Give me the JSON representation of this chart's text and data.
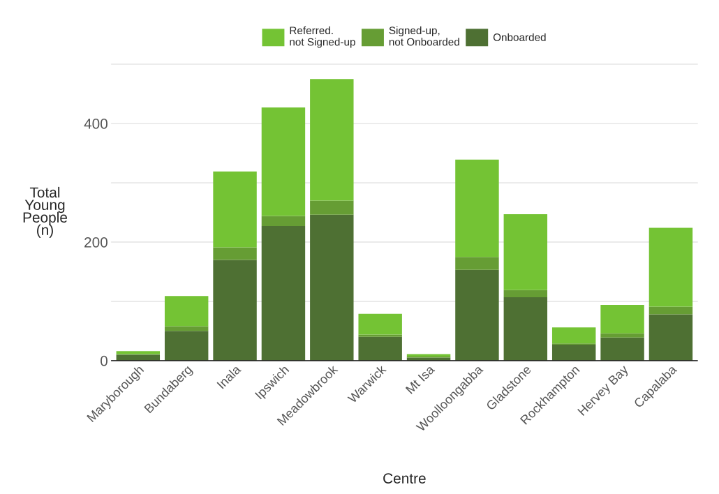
{
  "chart_data": {
    "type": "bar",
    "stacked": true,
    "xlabel": "Centre",
    "ylabel": "Total\nYoung\nPeople\n(n)",
    "categories": [
      "Maryborough",
      "Bundaberg",
      "Inala",
      "Ipswich",
      "Meadowbrook",
      "Warwick",
      "Mt Isa",
      "Woolloongabba",
      "Gladstone",
      "Rockhampton",
      "Hervey Bay",
      "Capalaba"
    ],
    "series": [
      {
        "name": "Onboarded",
        "color": "#4e7033",
        "values": [
          10,
          50,
          170,
          227,
          246,
          40,
          5,
          153,
          107,
          27,
          39,
          78
        ]
      },
      {
        "name": "Signed-up,\nnot Onboarded",
        "color": "#669d34",
        "values": [
          1,
          8,
          21,
          17,
          24,
          4,
          2,
          22,
          12,
          2,
          7,
          13
        ]
      },
      {
        "name": "Referred.\nnot Signed-up",
        "color": "#74c334",
        "values": [
          5,
          51,
          128,
          183,
          205,
          35,
          4,
          164,
          128,
          27,
          48,
          133
        ]
      }
    ],
    "ylim": [
      0,
      500
    ],
    "yticks": [
      0,
      {
        "value": 100,
        "label": null
      },
      200,
      {
        "value": 300,
        "label": null
      },
      400,
      {
        "value": 500,
        "label": null
      }
    ],
    "grid": "y",
    "legend": "top"
  }
}
